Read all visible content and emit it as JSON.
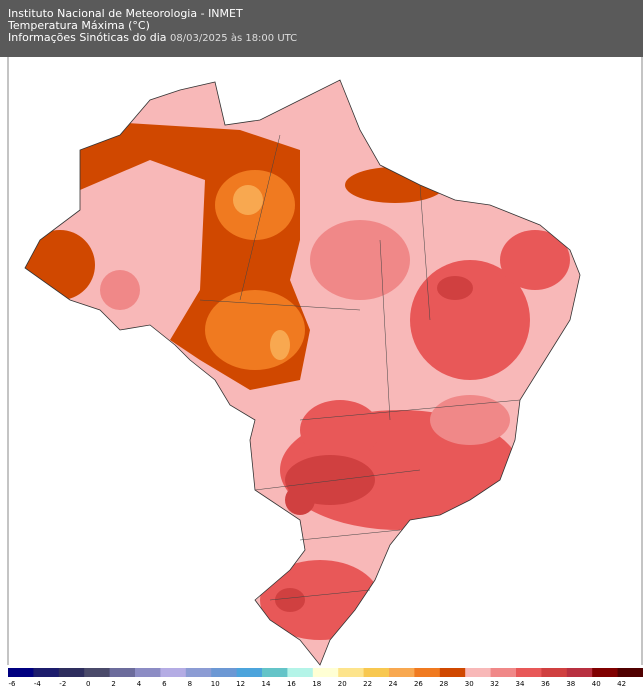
{
  "header": {
    "line1": "Instituto Nacional de Meteorologia - INMET",
    "line2": "Temperatura Máxima (°C)",
    "line3_label": "Informações Sinóticas do dia",
    "line3_date": "08/03/2025 às 18:00 UTC"
  },
  "colorbar": {
    "ticks": [
      -6,
      -4,
      -2,
      0,
      2,
      4,
      6,
      8,
      10,
      12,
      14,
      16,
      18,
      20,
      22,
      24,
      26,
      28,
      30,
      32,
      34,
      36,
      38,
      40,
      42
    ],
    "colors": [
      "#000080",
      "#1c1c6c",
      "#2e2e5e",
      "#4a4a6a",
      "#6c6c9c",
      "#8c8cc4",
      "#b4ace4",
      "#8c9cd4",
      "#6c98d4",
      "#4ca4dc",
      "#64c4c8",
      "#b4f4e8",
      "#ffffd4",
      "#fde48c",
      "#f8c850",
      "#f8a850",
      "#f07a20",
      "#d04800",
      "#f8b8b8",
      "#f08888",
      "#e85858",
      "#d04040",
      "#b83040",
      "#800000",
      "#500000"
    ]
  }
}
